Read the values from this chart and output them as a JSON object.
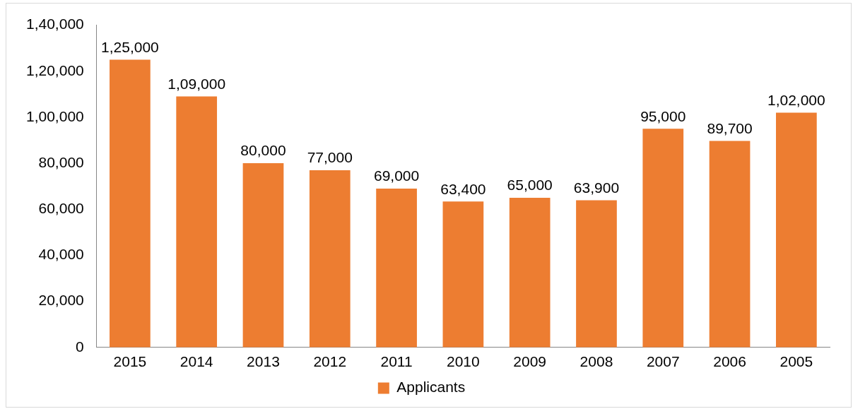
{
  "chart_data": {
    "type": "bar",
    "categories": [
      "2015",
      "2014",
      "2013",
      "2012",
      "2011",
      "2010",
      "2009",
      "2008",
      "2007",
      "2006",
      "2005"
    ],
    "series": [
      {
        "name": "Applicants",
        "color": "#ed7d31",
        "values": [
          125000,
          109000,
          80000,
          77000,
          69000,
          63400,
          65000,
          63900,
          95000,
          89700,
          102000
        ],
        "value_labels": [
          "1,25,000",
          "1,09,000",
          "80,000",
          "77,000",
          "69,000",
          "63,400",
          "65,000",
          "63,900",
          "95,000",
          "89,700",
          "1,02,000"
        ]
      }
    ],
    "ylim": [
      0,
      140000
    ],
    "yticks": [
      {
        "value": 0,
        "label": "0"
      },
      {
        "value": 20000,
        "label": "20,000"
      },
      {
        "value": 40000,
        "label": "40,000"
      },
      {
        "value": 60000,
        "label": "60,000"
      },
      {
        "value": 80000,
        "label": "80,000"
      },
      {
        "value": 100000,
        "label": "1,00,000"
      },
      {
        "value": 120000,
        "label": "1,20,000"
      },
      {
        "value": 140000,
        "label": "1,40,000"
      }
    ],
    "grid": false,
    "legend": "bottom"
  }
}
